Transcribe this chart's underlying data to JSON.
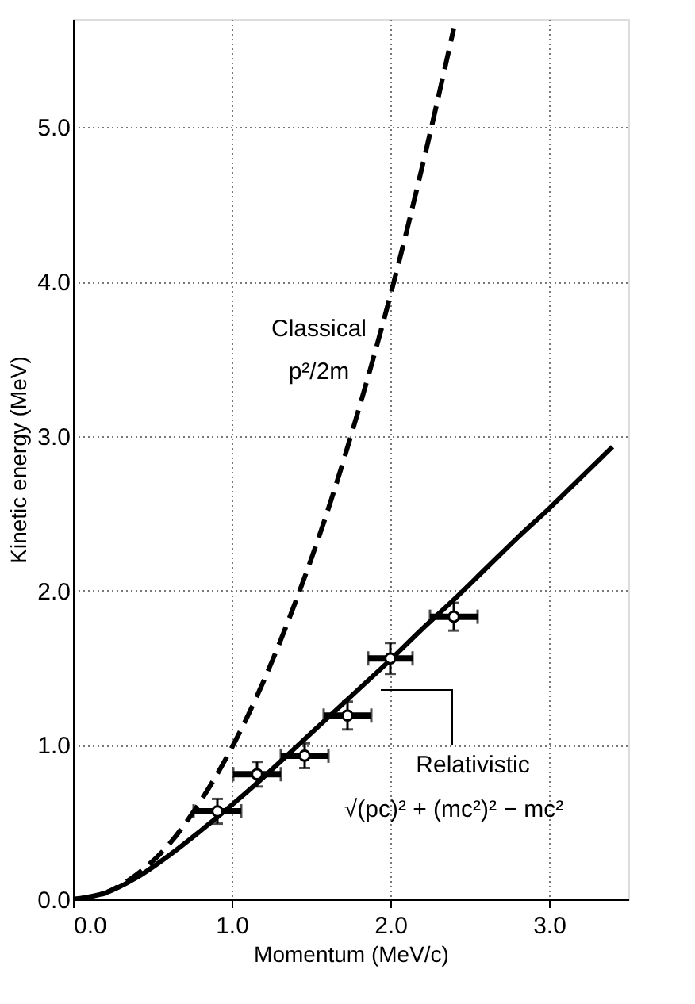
{
  "chart_data": {
    "type": "line",
    "xlabel": "Momentum (MeV/c)",
    "ylabel": "Kinetic energy (MeV)",
    "xlim": [
      0,
      3.5
    ],
    "ylim": [
      0,
      5.7
    ],
    "xticks": [
      {
        "value": 0,
        "label": "0.0"
      },
      {
        "value": 1,
        "label": "1.0"
      },
      {
        "value": 2,
        "label": "2.0"
      },
      {
        "value": 3,
        "label": "3.0"
      }
    ],
    "yticks": [
      {
        "value": 0,
        "label": "0.0"
      },
      {
        "value": 1,
        "label": "1.0"
      },
      {
        "value": 2,
        "label": "2.0"
      },
      {
        "value": 3,
        "label": "3.0"
      },
      {
        "value": 4,
        "label": "4.0"
      },
      {
        "value": 5,
        "label": "5.0"
      }
    ],
    "grid": true,
    "series": [
      {
        "type": "line",
        "color": "#000000",
        "line_style": "dashed",
        "marker": "none",
        "x": [
          0,
          0.2,
          0.4,
          0.6,
          0.8,
          1.0,
          1.2,
          1.4,
          1.6,
          1.8,
          2.0,
          2.2,
          2.4
        ],
        "values": [
          0,
          0.04,
          0.16,
          0.35,
          0.63,
          0.98,
          1.41,
          1.92,
          2.5,
          3.17,
          3.91,
          4.74,
          5.64
        ]
      },
      {
        "type": "line",
        "color": "#000000",
        "line_style": "solid",
        "marker": "none",
        "x": [
          0,
          0.2,
          0.4,
          0.6,
          0.8,
          1.0,
          1.2,
          1.4,
          1.6,
          1.8,
          2.0,
          2.2,
          2.4,
          2.6,
          2.8,
          3.0,
          3.2,
          3.4
        ],
        "values": [
          0,
          0.04,
          0.14,
          0.28,
          0.44,
          0.61,
          0.79,
          0.98,
          1.17,
          1.36,
          1.55,
          1.75,
          1.94,
          2.14,
          2.34,
          2.53,
          2.73,
          2.93
        ]
      },
      {
        "type": "scatter",
        "color": "#000000",
        "marker": "circle",
        "x": [
          0.91,
          1.16,
          1.46,
          1.73,
          2.0,
          2.4
        ],
        "values": [
          0.57,
          0.81,
          0.93,
          1.19,
          1.56,
          1.83
        ],
        "errors": [
          0.08,
          0.08,
          0.08,
          0.09,
          0.1,
          0.09
        ],
        "xerrors": [
          0.15,
          0.15,
          0.15,
          0.15,
          0.14,
          0.15
        ]
      }
    ],
    "annotations": [
      "Classical",
      "p²/2m",
      "Relativistic",
      "√(pc)² + (mc²)² − mc²"
    ]
  }
}
